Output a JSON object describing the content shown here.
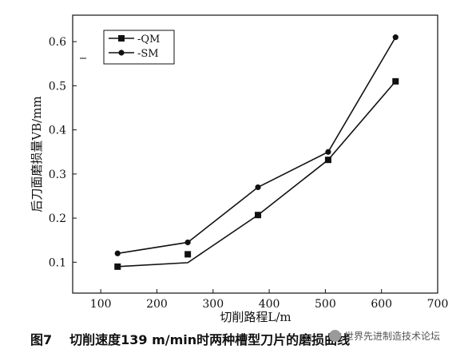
{
  "chart_data": {
    "type": "line",
    "x_ticks": [
      100,
      200,
      300,
      400,
      500,
      600,
      700
    ],
    "y_ticks": [
      "0.1",
      "0.2",
      "0.3",
      "0.4",
      "0.5",
      "0.6"
    ],
    "y_tick_values": [
      0.1,
      0.2,
      0.3,
      0.4,
      0.5,
      0.6
    ],
    "xlim": [
      50,
      700
    ],
    "ylim": [
      0.03,
      0.66
    ],
    "xlabel": "切削路程L/m",
    "ylabel": "后刀面磨损量VB/mm",
    "legend_position": "top-left",
    "grid": false,
    "series": [
      {
        "name": "-QM",
        "marker": "square",
        "points": [
          [
            130,
            0.09
          ],
          [
            255,
            0.118
          ],
          [
            380,
            0.207
          ],
          [
            505,
            0.332
          ],
          [
            625,
            0.51
          ]
        ],
        "line": [
          [
            130,
            0.09
          ],
          [
            255,
            0.099
          ],
          [
            380,
            0.207
          ],
          [
            505,
            0.332
          ],
          [
            625,
            0.51
          ]
        ]
      },
      {
        "name": "-SM",
        "marker": "circle",
        "points": [
          [
            130,
            0.12
          ],
          [
            255,
            0.145
          ],
          [
            380,
            0.27
          ],
          [
            505,
            0.35
          ],
          [
            625,
            0.61
          ]
        ],
        "line": [
          [
            130,
            0.12
          ],
          [
            255,
            0.145
          ],
          [
            380,
            0.27
          ],
          [
            505,
            0.35
          ],
          [
            625,
            0.61
          ]
        ]
      }
    ]
  },
  "caption": {
    "figure_no": "图7",
    "title": "切削速度139 m/min时两种槽型刀片的磨损曲线"
  },
  "watermark": {
    "text": "世界先进制造技术论坛"
  }
}
